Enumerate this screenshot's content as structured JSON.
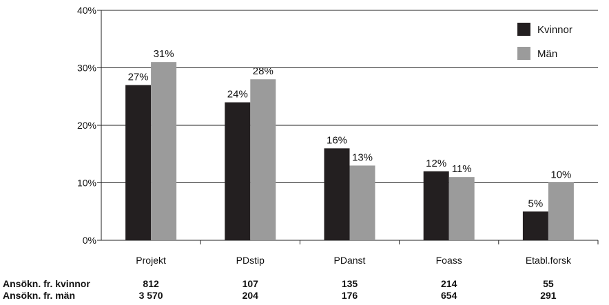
{
  "chart_data": {
    "type": "bar",
    "title": "",
    "xlabel": "",
    "ylabel": "",
    "categories": [
      "Projekt",
      "PDstip",
      "PDanst",
      "Foass",
      "Etabl.forsk"
    ],
    "series": [
      {
        "name": "Kvinnor",
        "values": [
          27,
          24,
          16,
          12,
          5
        ],
        "labels": [
          "27%",
          "24%",
          "16%",
          "12%",
          "5%"
        ],
        "color": "#231f20"
      },
      {
        "name": "Män",
        "values": [
          31,
          28,
          13,
          11,
          10
        ],
        "labels": [
          "31%",
          "28%",
          "13%",
          "11%",
          "10%"
        ],
        "color": "#9b9b9b"
      }
    ],
    "ylim": [
      0,
      40
    ],
    "yticks": [
      0,
      10,
      20,
      30,
      40
    ],
    "ytick_labels": [
      "0%",
      "10%",
      "20%",
      "30%",
      "40%"
    ],
    "grid": true,
    "legend_position": "top-right",
    "table": {
      "rows": [
        {
          "label": "Ansökn. fr. kvinnor",
          "values": [
            "812",
            "107",
            "135",
            "214",
            "55"
          ]
        },
        {
          "label": "Ansökn. fr. män",
          "values": [
            "3 570",
            "204",
            "176",
            "654",
            "291"
          ]
        }
      ]
    }
  }
}
